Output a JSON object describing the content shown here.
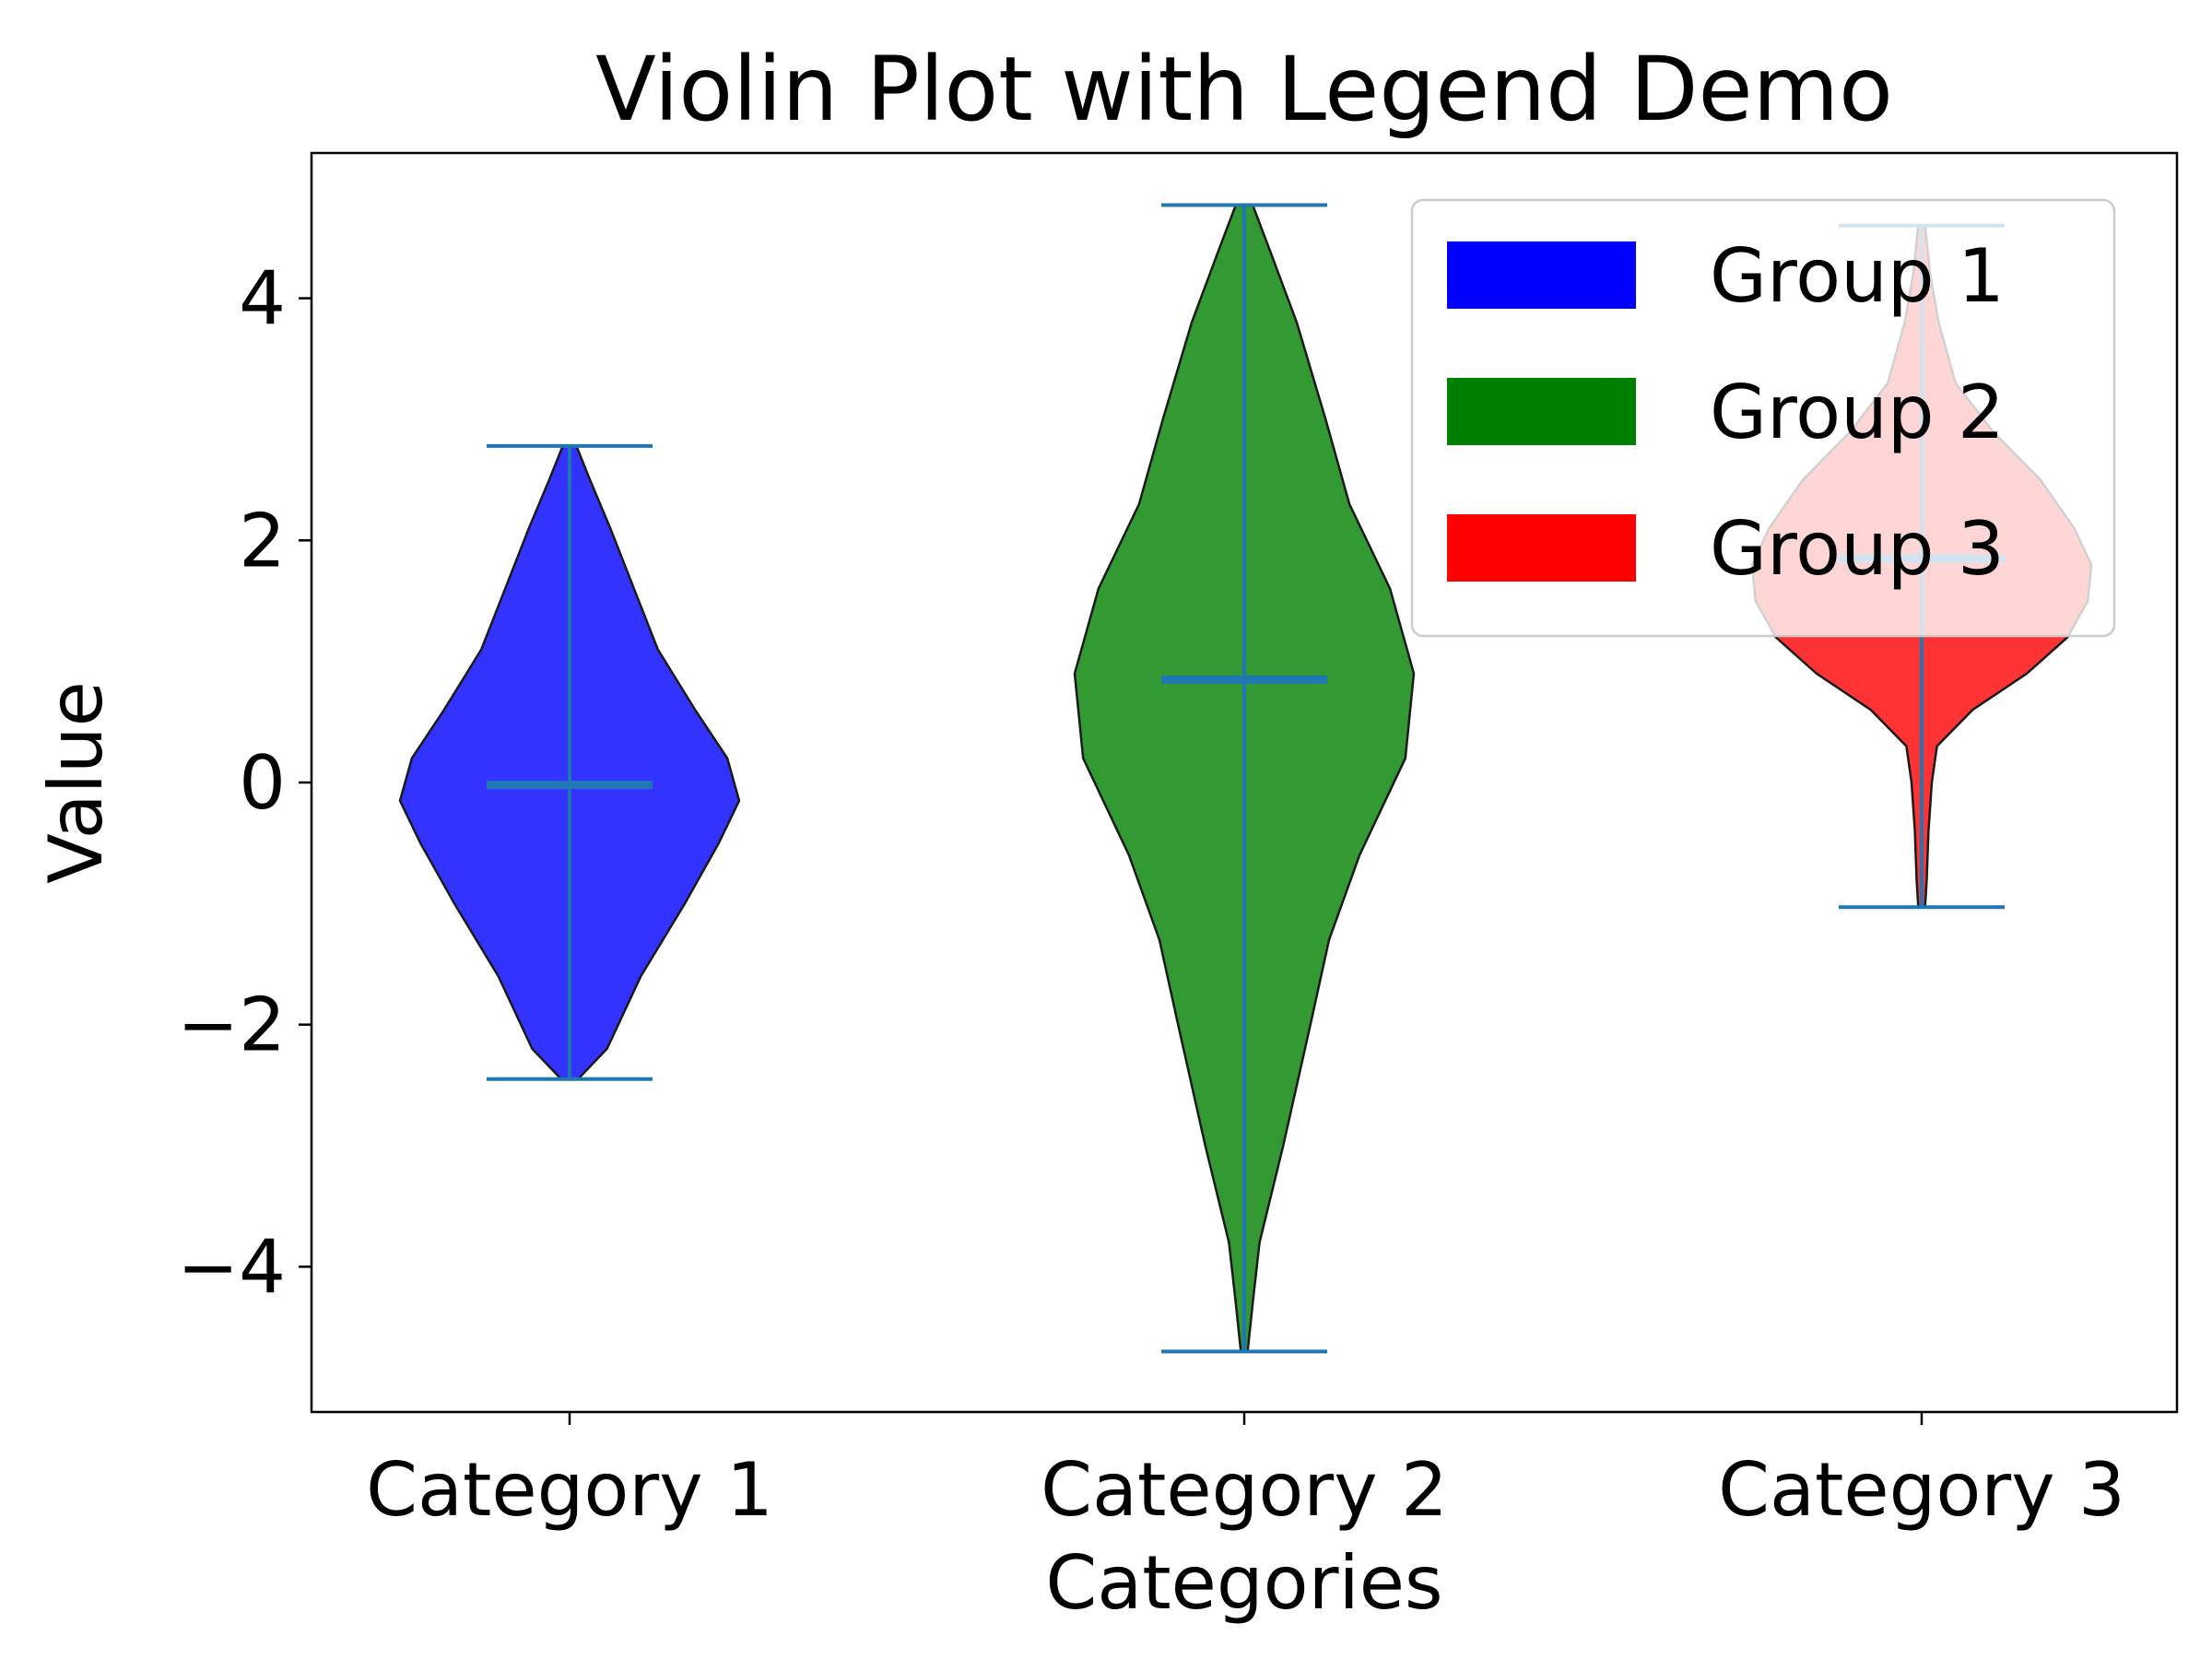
{
  "chart_data": {
    "type": "violin",
    "title": "Violin Plot with Legend Demo",
    "xlabel": "Categories",
    "ylabel": "Value",
    "ylim": [
      -5.2,
      5.2
    ],
    "yticks": [
      -4,
      -2,
      0,
      2,
      4
    ],
    "ytick_labels": [
      "−4",
      "−2",
      "0",
      "2",
      "4"
    ],
    "categories": [
      "Category 1",
      "Category 2",
      "Category 3"
    ],
    "legend": {
      "placement": "top-right",
      "entries": [
        {
          "label": "Group 1",
          "color": "#0000ff"
        },
        {
          "label": "Group 2",
          "color": "#008000"
        },
        {
          "label": "Group 3",
          "color": "#ff0000"
        }
      ]
    },
    "series": [
      {
        "category": "Category 1",
        "color": "#0000ff",
        "min": -2.45,
        "max": 2.78,
        "median": -0.02,
        "profile": [
          [
            -2.45,
            0.05
          ],
          [
            -2.2,
            0.22
          ],
          [
            -1.6,
            0.42
          ],
          [
            -1.0,
            0.68
          ],
          [
            -0.5,
            0.88
          ],
          [
            -0.15,
            1.0
          ],
          [
            0.2,
            0.93
          ],
          [
            0.6,
            0.74
          ],
          [
            1.1,
            0.52
          ],
          [
            1.6,
            0.38
          ],
          [
            2.1,
            0.24
          ],
          [
            2.5,
            0.12
          ],
          [
            2.78,
            0.04
          ]
        ]
      },
      {
        "category": "Category 2",
        "color": "#008000",
        "min": -4.7,
        "max": 4.77,
        "median": 0.85,
        "profile": [
          [
            -4.7,
            0.02
          ],
          [
            -4.3,
            0.05
          ],
          [
            -3.8,
            0.09
          ],
          [
            -3.0,
            0.23
          ],
          [
            -2.0,
            0.39
          ],
          [
            -1.3,
            0.5
          ],
          [
            -0.6,
            0.68
          ],
          [
            0.2,
            0.95
          ],
          [
            0.9,
            1.0
          ],
          [
            1.6,
            0.86
          ],
          [
            2.3,
            0.62
          ],
          [
            3.0,
            0.48
          ],
          [
            3.8,
            0.31
          ],
          [
            4.4,
            0.15
          ],
          [
            4.77,
            0.05
          ]
        ]
      },
      {
        "category": "Category 3",
        "color": "#ff0000",
        "min": -1.03,
        "max": 4.6,
        "median": 1.85,
        "profile": [
          [
            -1.03,
            0.02
          ],
          [
            -0.8,
            0.03
          ],
          [
            -0.4,
            0.04
          ],
          [
            0.0,
            0.06
          ],
          [
            0.3,
            0.09
          ],
          [
            0.6,
            0.3
          ],
          [
            0.9,
            0.62
          ],
          [
            1.2,
            0.86
          ],
          [
            1.5,
            0.98
          ],
          [
            1.8,
            1.0
          ],
          [
            2.1,
            0.9
          ],
          [
            2.5,
            0.7
          ],
          [
            2.9,
            0.42
          ],
          [
            3.3,
            0.2
          ],
          [
            3.8,
            0.1
          ],
          [
            4.2,
            0.05
          ],
          [
            4.6,
            0.02
          ]
        ]
      }
    ]
  }
}
